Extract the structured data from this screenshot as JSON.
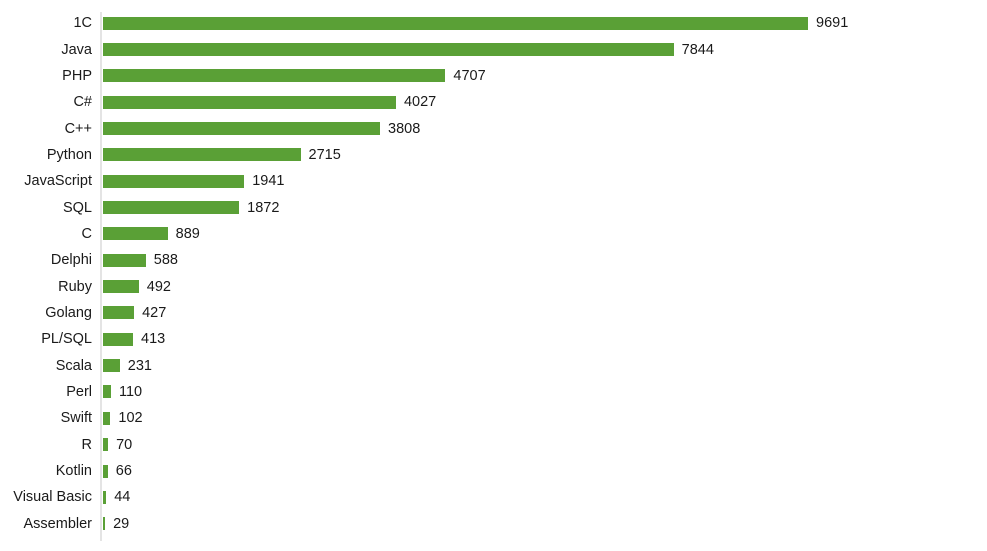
{
  "chart_data": {
    "type": "bar",
    "orientation": "horizontal",
    "title": "",
    "xlabel": "",
    "ylabel": "",
    "legend": "none",
    "grid": false,
    "xlim": [
      0,
      10000
    ],
    "sort_order": "descending",
    "categories": [
      "1C",
      "Java",
      "PHP",
      "C#",
      "C++",
      "Python",
      "JavaScript",
      "SQL",
      "C",
      "Delphi",
      "Ruby",
      "Golang",
      "PL/SQL",
      "Scala",
      "Perl",
      "Swift",
      "R",
      "Kotlin",
      "Visual Basic",
      "Assembler"
    ],
    "values": [
      9691,
      7844,
      4707,
      4027,
      3808,
      2715,
      1941,
      1872,
      889,
      588,
      492,
      427,
      413,
      231,
      110,
      102,
      70,
      66,
      44,
      29
    ],
    "data_labels_visible": true,
    "colors": {
      "bar": "#5aa036",
      "axis_line": "#e4e4e4",
      "label_text": "#1a1a1a",
      "background": "#ffffff"
    }
  }
}
